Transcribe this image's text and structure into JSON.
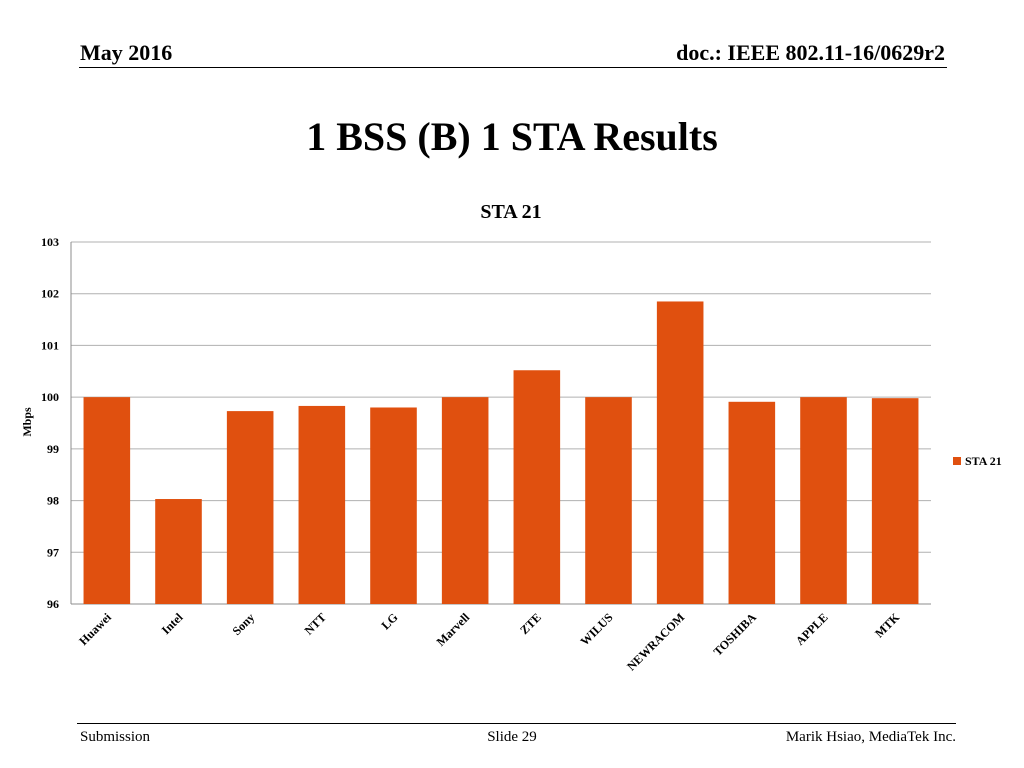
{
  "header": {
    "date": "May 2016",
    "doc": "doc.: IEEE 802.11-16/0629r2"
  },
  "slide_title": "1 BSS (B) 1 STA Results",
  "footer": {
    "left": "Submission",
    "center": "Slide 29",
    "right": "Marik Hsiao, MediaTek Inc."
  },
  "colors": {
    "bar": "#E0500F",
    "grid": "#B0B0B0",
    "axis": "#8C8C8C"
  },
  "chart_data": {
    "type": "bar",
    "title": "STA 21",
    "xlabel": "",
    "ylabel": "Mbps",
    "ylim": [
      96,
      103
    ],
    "yticks": [
      96,
      97,
      98,
      99,
      100,
      101,
      102,
      103
    ],
    "grid": true,
    "legend_position": "right",
    "categories": [
      "Huawei",
      "Intel",
      "Sony",
      "NTT",
      "LG",
      "Marvell",
      "ZTE",
      "WILUS",
      "NEWRACOM",
      "TOSHIBA",
      "APPLE",
      "MTK"
    ],
    "series": [
      {
        "name": "STA 21",
        "values": [
          100.0,
          98.03,
          99.73,
          99.83,
          99.8,
          100.0,
          100.52,
          100.0,
          101.85,
          99.91,
          100.0,
          99.98
        ]
      }
    ]
  }
}
